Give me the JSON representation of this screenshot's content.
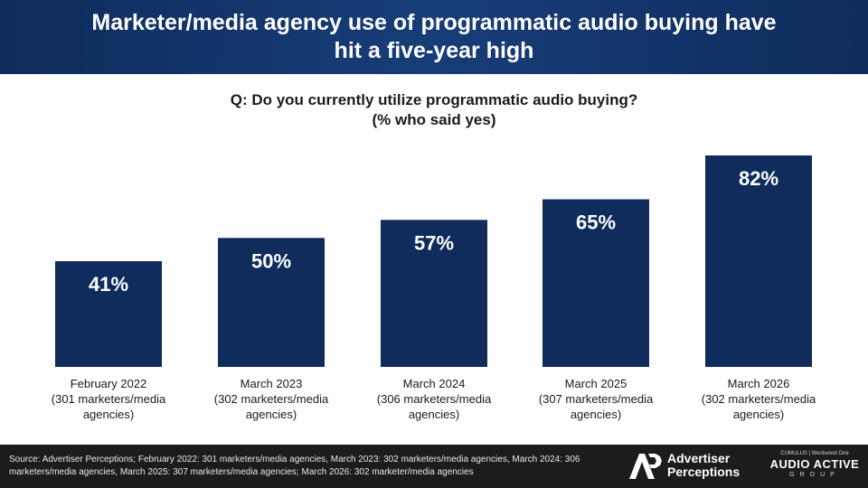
{
  "title": "Marketer/media agency use of programmatic audio buying have hit a five-year high",
  "question_line1": "Q: Do you currently utilize programmatic audio buying?",
  "question_line2": "(% who said yes)",
  "colors": {
    "bar": "#0f2c5c",
    "bar_label": "#ffffff",
    "header_bg": "#0f2c5c"
  },
  "chart_data": {
    "type": "bar",
    "categories": [
      [
        "February 2022",
        "(301 marketers/media",
        "agencies)"
      ],
      [
        "March 2023",
        "(302 marketers/media",
        "agencies)"
      ],
      [
        "March 2024",
        "(306 marketers/media",
        "agencies)"
      ],
      [
        "March 2025",
        "(307 marketers/media",
        "agencies)"
      ],
      [
        "March 2026",
        "(302 marketers/media",
        "agencies)"
      ]
    ],
    "values": [
      41,
      50,
      57,
      65,
      82
    ],
    "data_labels": [
      "41%",
      "50%",
      "57%",
      "65%",
      "82%"
    ],
    "ylim": [
      0,
      100
    ],
    "grid": false,
    "legend": "none"
  },
  "footer": {
    "source": "Source: Advertiser Perceptions; February 2022: 301 marketers/media agencies, March 2023: 302 marketers/media agencies, March 2024: 306 marketers/media agencies, March 2025: 307 marketers/media agencies; March 2026: 302 marketer/media agencies",
    "logo_ap_line1": "Advertiser",
    "logo_ap_line2": "Perceptions",
    "logo_aa_top": "CUMULUS | Westwood One",
    "logo_aa_main": "AUDIO ACTIVE",
    "logo_aa_sub": "GROUP"
  }
}
